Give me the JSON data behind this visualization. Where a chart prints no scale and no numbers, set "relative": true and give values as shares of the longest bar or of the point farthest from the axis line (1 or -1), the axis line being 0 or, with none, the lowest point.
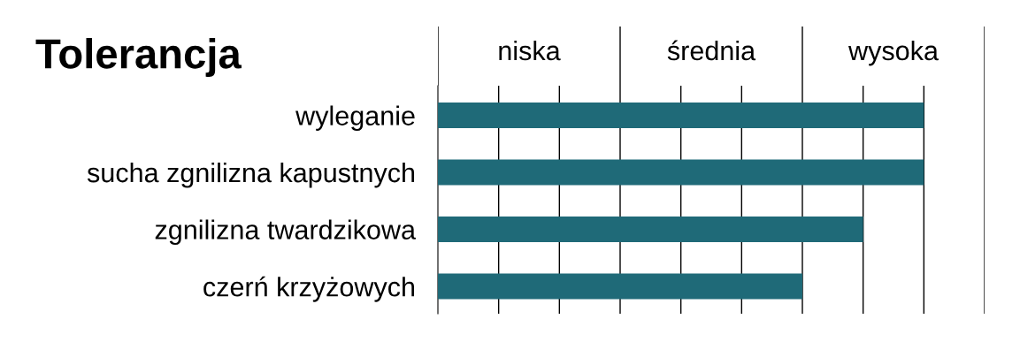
{
  "chart_data": {
    "type": "bar",
    "orientation": "horizontal",
    "relative": true,
    "title": "Tolerancja",
    "categories": [
      "wyleganie",
      "sucha zgnilizna kapustnych",
      "zgnilizna twardzikowa",
      "czerń krzyżowych"
    ],
    "series": [
      {
        "color": "#1f6a78",
        "values": [
          1,
          1,
          0.875,
          0.75
        ]
      }
    ],
    "annotations": [
      "niska",
      "średnia",
      "wysoka"
    ],
    "ref_lines": [
      {
        "axis": "x",
        "value": 0.125
      },
      {
        "axis": "x",
        "value": 0.25
      },
      {
        "axis": "x",
        "value": 0.375
      },
      {
        "axis": "x",
        "value": 0.5
      },
      {
        "axis": "x",
        "value": 0.625
      },
      {
        "axis": "x",
        "value": 0.75
      },
      {
        "axis": "x",
        "value": 0.875
      },
      {
        "axis": "x",
        "value": 1
      },
      {
        "axis": "x",
        "value": 1.125
      }
    ],
    "legend": false
  }
}
